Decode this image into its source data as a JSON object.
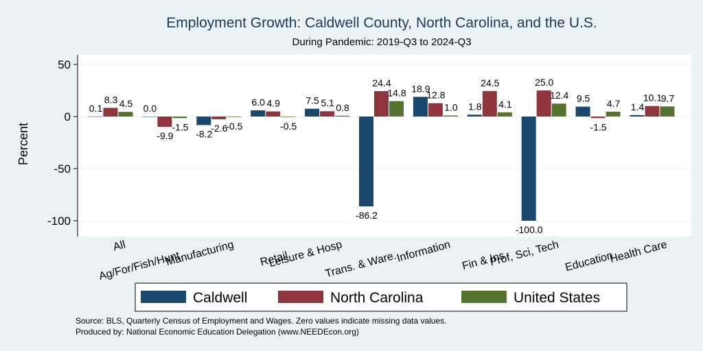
{
  "chart_data": {
    "type": "bar",
    "title": "Employment Growth: Caldwell County, North Carolina, and the U.S.",
    "subtitle": "During Pandemic: 2019-Q3 to 2024-Q3",
    "ylabel": "Percent",
    "xlabel": "",
    "ylim": [
      -110,
      55
    ],
    "yticks": [
      50,
      0,
      -50,
      -100
    ],
    "grid": true,
    "categories": [
      "All",
      "Ag/For/Fish/Hunt",
      "Manufacturing",
      "Retail",
      "Leisure & Hosp",
      "Trans. & Ware.",
      "Information",
      "Fin & Ins",
      "Prof, Sci, Tech",
      "Education",
      "Health Care"
    ],
    "series": [
      {
        "name": "Caldwell",
        "color": "#1a476f",
        "values": [
          0.1,
          0.0,
          -8.2,
          6.0,
          7.5,
          -86.2,
          18.9,
          1.8,
          -100.0,
          9.5,
          1.4
        ]
      },
      {
        "name": "North Carolina",
        "color": "#90353b",
        "values": [
          8.3,
          -9.9,
          -2.6,
          4.9,
          5.1,
          24.4,
          12.8,
          24.5,
          25.0,
          -1.5,
          10.1
        ]
      },
      {
        "name": "United States",
        "color": "#55752f",
        "values": [
          4.5,
          -1.5,
          -0.5,
          -0.5,
          0.8,
          14.8,
          1.0,
          4.1,
          12.4,
          4.7,
          9.7
        ]
      }
    ],
    "legend_position": "bottom"
  },
  "notes": {
    "source": "Source: BLS, Quarterly Census of Employment and Wages. Zero values indicate missing data values.",
    "produced": "Produced by: National Economic Education Delegation (www.NEEDEcon.org)"
  }
}
